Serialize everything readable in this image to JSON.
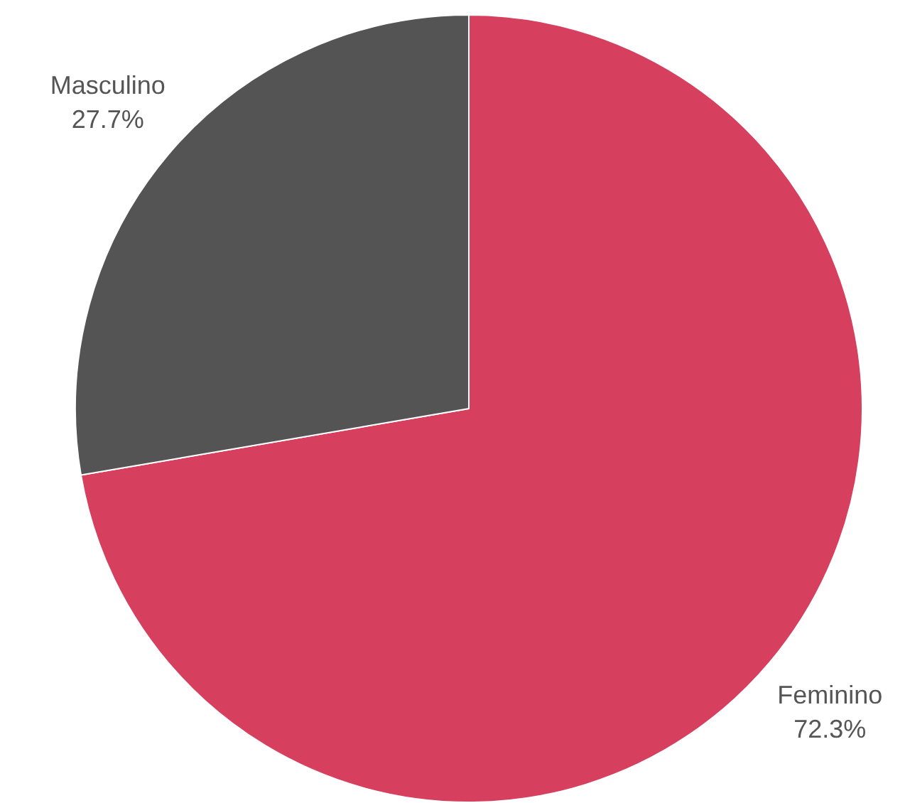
{
  "chart_data": {
    "type": "pie",
    "categories": [
      "Feminino",
      "Masculino"
    ],
    "values": [
      72.3,
      27.7
    ],
    "colors": [
      "#d63f5e",
      "#545454"
    ],
    "value_labels": [
      "72.3%",
      "27.7%"
    ],
    "legend": false
  }
}
